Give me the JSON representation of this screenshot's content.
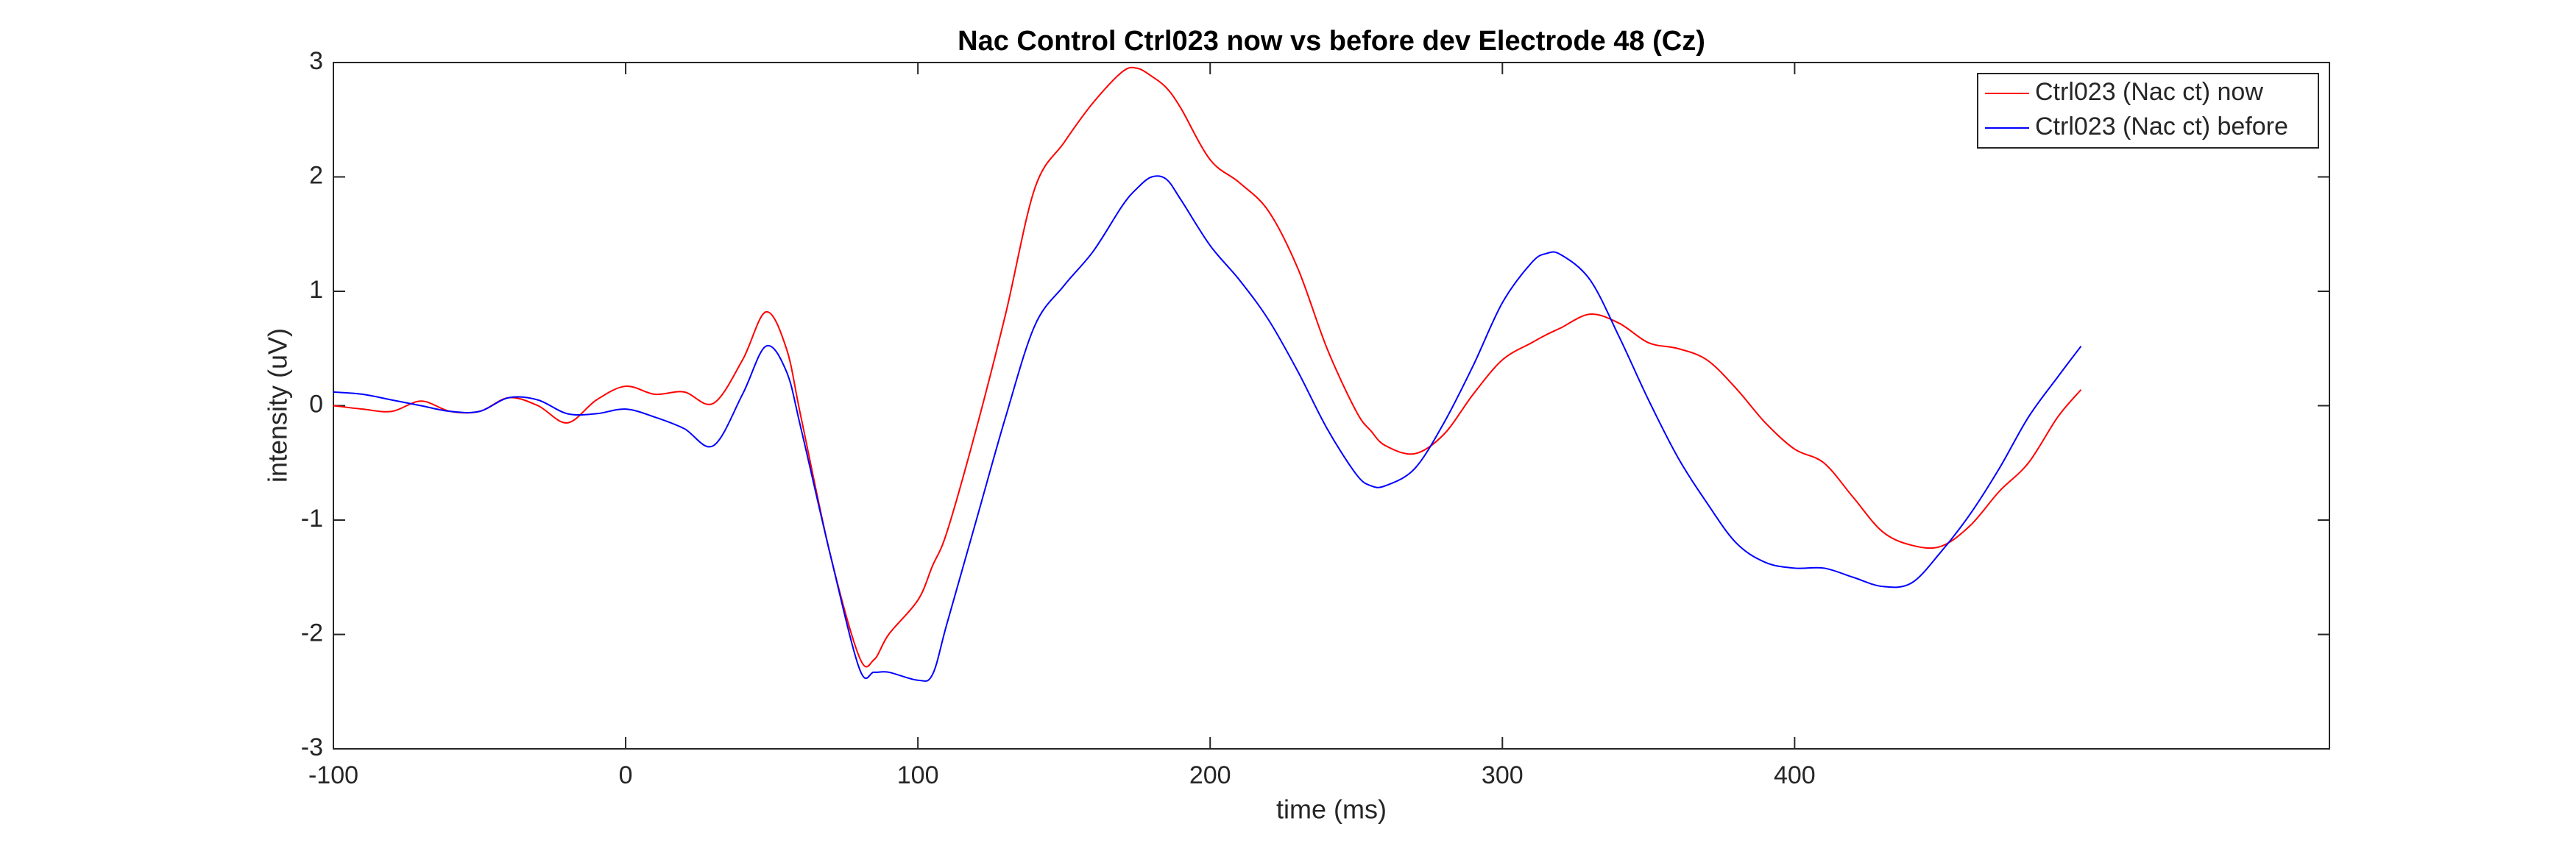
{
  "chart_data": {
    "type": "line",
    "title": "Nac Control Ctrl023 now vs before dev Electrode 48 (Cz)",
    "xlabel": "time (ms)",
    "ylabel": "intensity (uV)",
    "x": [
      -100,
      -90,
      -80,
      -70,
      -60,
      -50,
      -40,
      -30,
      -20,
      -10,
      0,
      10,
      20,
      30,
      40,
      48,
      55,
      60,
      70,
      80,
      85,
      90,
      100,
      105,
      110,
      120,
      130,
      140,
      150,
      160,
      170,
      175,
      180,
      185,
      190,
      200,
      210,
      220,
      230,
      240,
      250,
      255,
      260,
      270,
      280,
      290,
      300,
      310,
      315,
      320,
      330,
      340,
      350,
      360,
      370,
      380,
      390,
      400,
      410,
      420,
      430,
      440,
      450,
      460,
      470,
      480,
      490,
      498
    ],
    "series": [
      {
        "name": "Ctrl023 (Nac ct) now",
        "color": "#ff0000",
        "values": [
          0.0,
          -0.03,
          -0.05,
          0.04,
          -0.05,
          -0.05,
          0.07,
          0.0,
          -0.15,
          0.05,
          0.17,
          0.1,
          0.12,
          0.02,
          0.4,
          0.82,
          0.5,
          -0.1,
          -1.3,
          -2.2,
          -2.22,
          -2.0,
          -1.7,
          -1.4,
          -1.1,
          -0.2,
          0.8,
          1.9,
          2.3,
          2.65,
          2.92,
          2.95,
          2.88,
          2.78,
          2.6,
          2.15,
          1.95,
          1.7,
          1.2,
          0.5,
          -0.05,
          -0.22,
          -0.35,
          -0.42,
          -0.25,
          0.1,
          0.4,
          0.55,
          0.62,
          0.68,
          0.8,
          0.72,
          0.55,
          0.5,
          0.4,
          0.15,
          -0.15,
          -0.38,
          -0.5,
          -0.8,
          -1.1,
          -1.22,
          -1.23,
          -1.05,
          -0.75,
          -0.5,
          -0.1,
          0.14
        ]
      },
      {
        "name": "Ctrl023 (Nac ct) before",
        "color": "#0000ff",
        "values": [
          0.12,
          0.1,
          0.05,
          0.0,
          -0.05,
          -0.05,
          0.07,
          0.05,
          -0.07,
          -0.07,
          -0.03,
          -0.1,
          -0.2,
          -0.35,
          0.1,
          0.52,
          0.3,
          -0.2,
          -1.3,
          -2.3,
          -2.33,
          -2.33,
          -2.4,
          -2.35,
          -1.9,
          -1.0,
          -0.1,
          0.7,
          1.05,
          1.35,
          1.75,
          1.9,
          2.0,
          1.98,
          1.8,
          1.4,
          1.1,
          0.75,
          0.3,
          -0.2,
          -0.6,
          -0.7,
          -0.7,
          -0.55,
          -0.15,
          0.35,
          0.9,
          1.25,
          1.33,
          1.32,
          1.1,
          0.6,
          0.05,
          -0.45,
          -0.85,
          -1.2,
          -1.37,
          -1.42,
          -1.42,
          -1.5,
          -1.58,
          -1.55,
          -1.28,
          -0.95,
          -0.55,
          -0.1,
          0.25,
          0.52
        ]
      }
    ],
    "xlim": [
      -100,
      583
    ],
    "xticks": [
      -100,
      0,
      100,
      200,
      300,
      400
    ],
    "ylim": [
      -3,
      3
    ],
    "yticks": [
      -3,
      -2,
      -1,
      0,
      1,
      2,
      3
    ],
    "legend": "northeast"
  }
}
